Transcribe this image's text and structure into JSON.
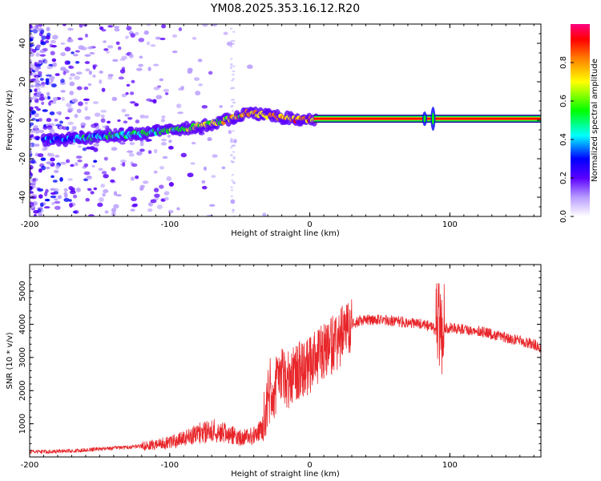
{
  "title": "YM08.2025.353.16.12.R20",
  "chart_data": [
    {
      "type": "heatmap",
      "title": "YM08.2025.353.16.12.R20",
      "xlabel": "Height of straight line (km)",
      "ylabel": "Frequency (Hz)",
      "xlim": [
        -200,
        165
      ],
      "ylim": [
        -50,
        50
      ],
      "xticks": [
        -200,
        -100,
        0,
        100
      ],
      "yticks": [
        -40,
        -20,
        0,
        20,
        40
      ],
      "colorbar": {
        "label": "Normalized spectral amplitude",
        "range": [
          0,
          1
        ],
        "ticks": [
          "0.0",
          "0.2",
          "0.4",
          "0.6",
          "0.8"
        ],
        "colors": [
          "#ffffff",
          "#b89cff",
          "#5a00ff",
          "#0000ff",
          "#00ffff",
          "#00ff00",
          "#ffff00",
          "#ff8000",
          "#ff0000",
          "#ff0080"
        ]
      },
      "ridge": {
        "x": [
          -190,
          -175,
          -160,
          -140,
          -120,
          -100,
          -85,
          -70,
          -55,
          -45,
          -35,
          -25,
          -15,
          -5,
          0,
          5,
          80,
          90,
          165
        ],
        "frequency_hz": [
          -10,
          -10,
          -9,
          -8,
          -7,
          -5,
          -4,
          -2,
          1,
          4,
          3,
          2,
          1,
          0,
          0.5,
          0.5,
          0.5,
          1,
          0.5
        ]
      }
    },
    {
      "type": "line",
      "xlabel": "Height of straight line (km)",
      "ylabel": "SNR (10 * v/v)",
      "xlim": [
        -200,
        165
      ],
      "ylim": [
        0,
        5800
      ],
      "xticks": [
        -200,
        -100,
        0,
        100
      ],
      "yticks": [
        1000,
        2000,
        3000,
        4000,
        5000
      ],
      "color": "#e8262a",
      "series": [
        {
          "name": "SNR",
          "x": [
            -200,
            -180,
            -160,
            -140,
            -120,
            -100,
            -90,
            -80,
            -70,
            -60,
            -50,
            -40,
            -32,
            -30,
            -25,
            -20,
            -15,
            -10,
            -5,
            0,
            5,
            10,
            15,
            20,
            25,
            30,
            35,
            40,
            60,
            80,
            85,
            88,
            90,
            92,
            94,
            96,
            100,
            110,
            120,
            130,
            140,
            150,
            160,
            165
          ],
          "y": [
            150,
            170,
            210,
            260,
            330,
            430,
            550,
            700,
            800,
            700,
            600,
            650,
            900,
            1700,
            2100,
            2400,
            2300,
            2500,
            2700,
            2800,
            3000,
            3200,
            3300,
            3500,
            3800,
            4000,
            4100,
            4150,
            4100,
            4000,
            3950,
            3900,
            3800,
            4000,
            3800,
            3850,
            3900,
            3850,
            3800,
            3700,
            3600,
            3500,
            3400,
            3300
          ]
        }
      ]
    }
  ]
}
